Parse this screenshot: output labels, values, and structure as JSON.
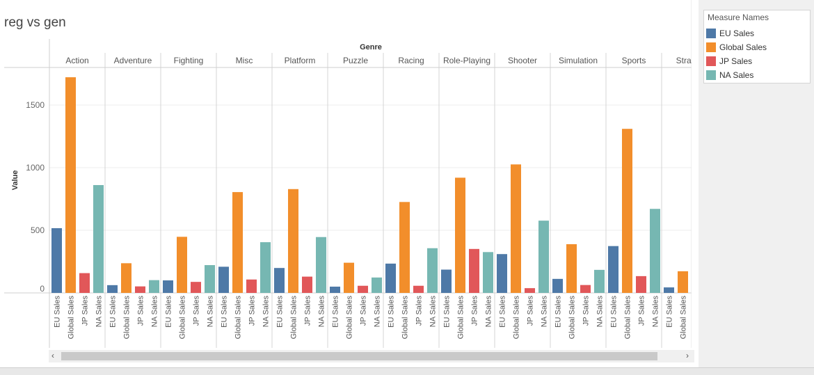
{
  "sheet_title": "reg vs gen",
  "chart_data": {
    "type": "bar",
    "xlabel": "Genre",
    "ylabel": "Value",
    "ylim": [
      0,
      1800
    ],
    "yticks": [
      0,
      500,
      1000,
      1500
    ],
    "grid": true,
    "legend_position": "top-right",
    "categories": [
      "Action",
      "Adventure",
      "Fighting",
      "Misc",
      "Platform",
      "Puzzle",
      "Racing",
      "Role-Playing",
      "Shooter",
      "Simulation",
      "Sports",
      "Strateg"
    ],
    "measures": [
      "EU Sales",
      "Global Sales",
      "JP Sales",
      "NA Sales"
    ],
    "series": [
      {
        "name": "EU Sales",
        "color": "#4e79a7",
        "values": [
          517,
          62,
          100,
          209,
          199,
          50,
          234,
          186,
          310,
          112,
          374,
          44
        ]
      },
      {
        "name": "Global Sales",
        "color": "#f28e2b",
        "values": [
          1722,
          237,
          448,
          805,
          829,
          241,
          726,
          920,
          1026,
          389,
          1310,
          173
        ]
      },
      {
        "name": "JP Sales",
        "color": "#e15759",
        "values": [
          158,
          52,
          88,
          107,
          130,
          57,
          57,
          351,
          38,
          63,
          134,
          0
        ]
      },
      {
        "name": "NA Sales",
        "color": "#76b7b2",
        "values": [
          861,
          102,
          222,
          405,
          446,
          123,
          357,
          326,
          577,
          184,
          671,
          0
        ]
      }
    ]
  },
  "legend": {
    "title": "Measure Names",
    "items": [
      {
        "label": "EU Sales",
        "color": "#4e79a7"
      },
      {
        "label": "Global Sales",
        "color": "#f28e2b"
      },
      {
        "label": "JP Sales",
        "color": "#e15759"
      },
      {
        "label": "NA Sales",
        "color": "#76b7b2"
      }
    ]
  },
  "scrollbar": {
    "left_arrow": "‹",
    "right_arrow": "›"
  }
}
